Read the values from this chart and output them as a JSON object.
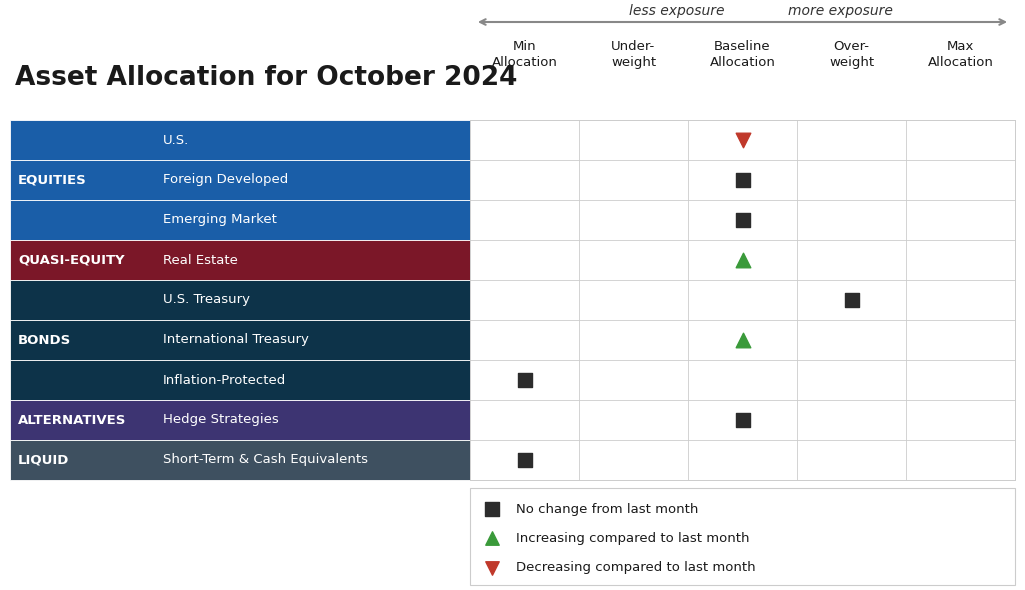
{
  "title": "Asset Allocation for October 2024",
  "title_fontsize": 19,
  "arrow_text_less": "less exposure",
  "arrow_text_more": "more exposure",
  "col_headers": [
    "Min\nAllocation",
    "Under-\nweight",
    "Baseline\nAllocation",
    "Over-\nweight",
    "Max\nAllocation"
  ],
  "row_categories": [
    {
      "label": "EQUITIES",
      "color": "#1A5EA8",
      "text_color": "#FFFFFF",
      "rows": [
        "U.S.",
        "Foreign Developed",
        "Emerging Market"
      ]
    },
    {
      "label": "QUASI-EQUITY",
      "color": "#7B1728",
      "text_color": "#FFFFFF",
      "rows": [
        "Real Estate"
      ]
    },
    {
      "label": "BONDS",
      "color": "#0D3349",
      "text_color": "#FFFFFF",
      "rows": [
        "U.S. Treasury",
        "International Treasury",
        "Inflation-Protected"
      ]
    },
    {
      "label": "ALTERNATIVES",
      "color": "#3D3472",
      "text_color": "#FFFFFF",
      "rows": [
        "Hedge Strategies"
      ]
    },
    {
      "label": "LIQUID",
      "color": "#3E5060",
      "text_color": "#FFFFFF",
      "rows": [
        "Short-Term & Cash Equivalents"
      ]
    }
  ],
  "markers": [
    {
      "row": 0,
      "col": 2,
      "type": "triangle_down",
      "color": "#C0392B"
    },
    {
      "row": 1,
      "col": 2,
      "type": "square",
      "color": "#2C2C2C"
    },
    {
      "row": 2,
      "col": 2,
      "type": "square",
      "color": "#2C2C2C"
    },
    {
      "row": 3,
      "col": 2,
      "type": "triangle_up",
      "color": "#3A9A3A"
    },
    {
      "row": 4,
      "col": 3,
      "type": "square",
      "color": "#2C2C2C"
    },
    {
      "row": 5,
      "col": 2,
      "type": "triangle_up",
      "color": "#3A9A3A"
    },
    {
      "row": 6,
      "col": 0,
      "type": "square",
      "color": "#2C2C2C"
    },
    {
      "row": 7,
      "col": 2,
      "type": "square",
      "color": "#2C2C2C"
    },
    {
      "row": 8,
      "col": 0,
      "type": "square",
      "color": "#2C2C2C"
    }
  ],
  "legend_items": [
    {
      "marker": "square",
      "color": "#2C2C2C",
      "text": "No change from last month"
    },
    {
      "marker": "triangle_up",
      "color": "#3A9A3A",
      "text": "Increasing compared to last month"
    },
    {
      "marker": "triangle_down",
      "color": "#C0392B",
      "text": "Decreasing compared to last month"
    }
  ],
  "grid_color": "#CCCCCC",
  "bg_color": "#FFFFFF",
  "marker_size": 110
}
